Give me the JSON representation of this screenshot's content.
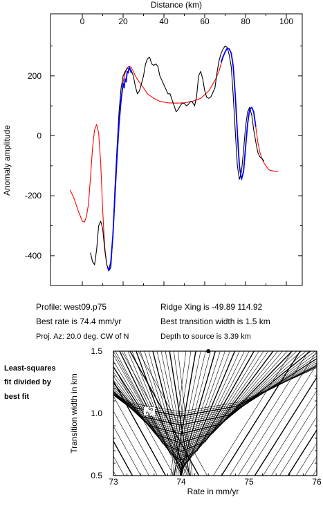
{
  "chart_data": [
    {
      "type": "line",
      "xlabel": "Distance (km)",
      "ylabel": "Anomaly amplitude",
      "xlim": [
        -10,
        105
      ],
      "ylim": [
        -500,
        300
      ],
      "x_ticks": [
        0,
        20,
        40,
        60,
        80,
        100
      ],
      "y_ticks": [
        -400,
        -200,
        0,
        200
      ],
      "x_tick_labels": [
        "0",
        "20",
        "40",
        "60",
        "80",
        "100"
      ],
      "y_tick_labels": [
        "-400",
        "-200",
        "0",
        "200"
      ],
      "grid": false,
      "series": [
        {
          "color": "#ff0000",
          "x": [
            -6,
            -4,
            -2,
            0,
            1,
            2,
            3,
            4,
            5,
            6,
            7,
            8,
            9,
            10,
            11,
            12,
            13,
            14,
            15,
            16,
            17,
            18,
            19,
            20,
            21,
            22,
            23,
            24,
            25,
            26,
            28,
            30,
            32,
            35,
            38,
            42,
            46,
            50,
            54,
            58,
            62,
            65,
            67,
            68,
            69,
            70,
            71,
            72,
            73,
            74,
            75,
            76,
            77,
            78,
            79,
            80,
            81,
            82,
            83,
            84,
            85,
            86,
            87,
            88,
            89,
            90,
            91,
            92,
            93,
            94,
            96
          ],
          "y": [
            -180,
            -210,
            -250,
            -285,
            -288,
            -270,
            -230,
            -140,
            -40,
            20,
            38,
            10,
            -90,
            -250,
            -370,
            -430,
            -450,
            -420,
            -330,
            -200,
            -70,
            40,
            120,
            180,
            210,
            228,
            232,
            228,
            215,
            200,
            178,
            160,
            140,
            125,
            115,
            110,
            109,
            110,
            115,
            125,
            150,
            185,
            215,
            240,
            262,
            280,
            290,
            290,
            275,
            230,
            130,
            10,
            -100,
            -145,
            -120,
            -40,
            40,
            88,
            95,
            80,
            30,
            -20,
            -55,
            -75,
            -90,
            -100,
            -110,
            -115,
            -116,
            -118,
            -120
          ]
        },
        {
          "color": "#000000",
          "x": [
            4,
            5,
            6,
            7,
            8,
            9,
            10,
            11,
            12,
            13,
            14,
            15,
            16,
            17,
            18,
            19,
            20,
            21,
            22,
            23,
            24,
            25,
            26,
            27,
            28,
            29,
            30,
            31,
            32,
            33,
            34,
            35,
            36,
            37,
            38,
            39,
            40,
            41,
            42,
            43,
            44,
            45,
            46,
            47,
            48,
            49,
            50,
            51,
            52,
            53,
            54,
            55,
            56,
            57,
            58,
            59,
            60,
            61,
            62,
            63,
            64,
            65,
            66,
            67,
            68,
            69,
            70,
            71,
            72,
            73,
            74,
            75,
            76,
            77,
            78,
            79,
            80,
            81,
            82,
            83,
            84,
            85,
            86,
            87,
            88,
            89
          ],
          "y": [
            -390,
            -420,
            -430,
            -380,
            -300,
            -285,
            -310,
            -380,
            -430,
            -450,
            -440,
            -330,
            -170,
            -40,
            80,
            160,
            200,
            215,
            225,
            222,
            218,
            200,
            165,
            140,
            150,
            175,
            200,
            240,
            258,
            262,
            240,
            235,
            240,
            232,
            200,
            185,
            170,
            155,
            140,
            140,
            120,
            100,
            80,
            88,
            100,
            110,
            108,
            100,
            105,
            115,
            112,
            100,
            130,
            200,
            215,
            190,
            150,
            128,
            125,
            130,
            145,
            160,
            210,
            250,
            275,
            290,
            300,
            295,
            270,
            230,
            130,
            10,
            -100,
            -145,
            -120,
            -50,
            30,
            80,
            95,
            70,
            20,
            -20,
            -55,
            -70,
            -75,
            -85
          ]
        },
        {
          "color": "#0000ff",
          "x": [
            12.5,
            13,
            14,
            15,
            16,
            17,
            18,
            19,
            20,
            20.5,
            21,
            21.5,
            22,
            22.5,
            23,
            23.5,
            24,
            68,
            69,
            70,
            71,
            72,
            73,
            74,
            75,
            76,
            77,
            78,
            79,
            80,
            81,
            82,
            83,
            84,
            85
          ],
          "y": [
            -440,
            -450,
            -420,
            -330,
            -200,
            -70,
            40,
            120,
            175,
            160,
            190,
            180,
            215,
            210,
            230,
            222,
            210,
            245,
            265,
            280,
            292,
            290,
            275,
            230,
            130,
            10,
            -100,
            -145,
            -120,
            -40,
            40,
            88,
            95,
            80,
            30
          ]
        }
      ]
    },
    {
      "type": "contour",
      "xlabel": "Rate in mm/yr",
      "ylabel": "Transition width in km",
      "xlim": [
        73,
        76
      ],
      "ylim": [
        0.5,
        1.5
      ],
      "x_ticks": [
        73,
        74,
        75,
        76
      ],
      "y_ticks": [
        0.5,
        1.0,
        1.5
      ],
      "x_tick_labels": [
        "73",
        "74",
        "75",
        "76"
      ],
      "y_tick_labels": [
        "0.5",
        "1.0",
        "1.5"
      ],
      "best_fit": {
        "rate": 74.4,
        "width": 1.5
      },
      "contour_label": "2.5",
      "grid": false
    }
  ],
  "info": {
    "profile": "Profile: west09.p75",
    "best_rate": "Best rate is 74.4 mm/yr",
    "proj_az": "Proj. Az: 20.0 deg. CW of N",
    "ridge_xing": "Ridge Xing is -49.89 114.92",
    "best_width": "Best transition width is 1.5 km",
    "depth": "Depth to source is   3.39 km"
  },
  "side_note": {
    "line1": "Least-squares",
    "line2": "fit divided by",
    "line3": "best fit"
  }
}
